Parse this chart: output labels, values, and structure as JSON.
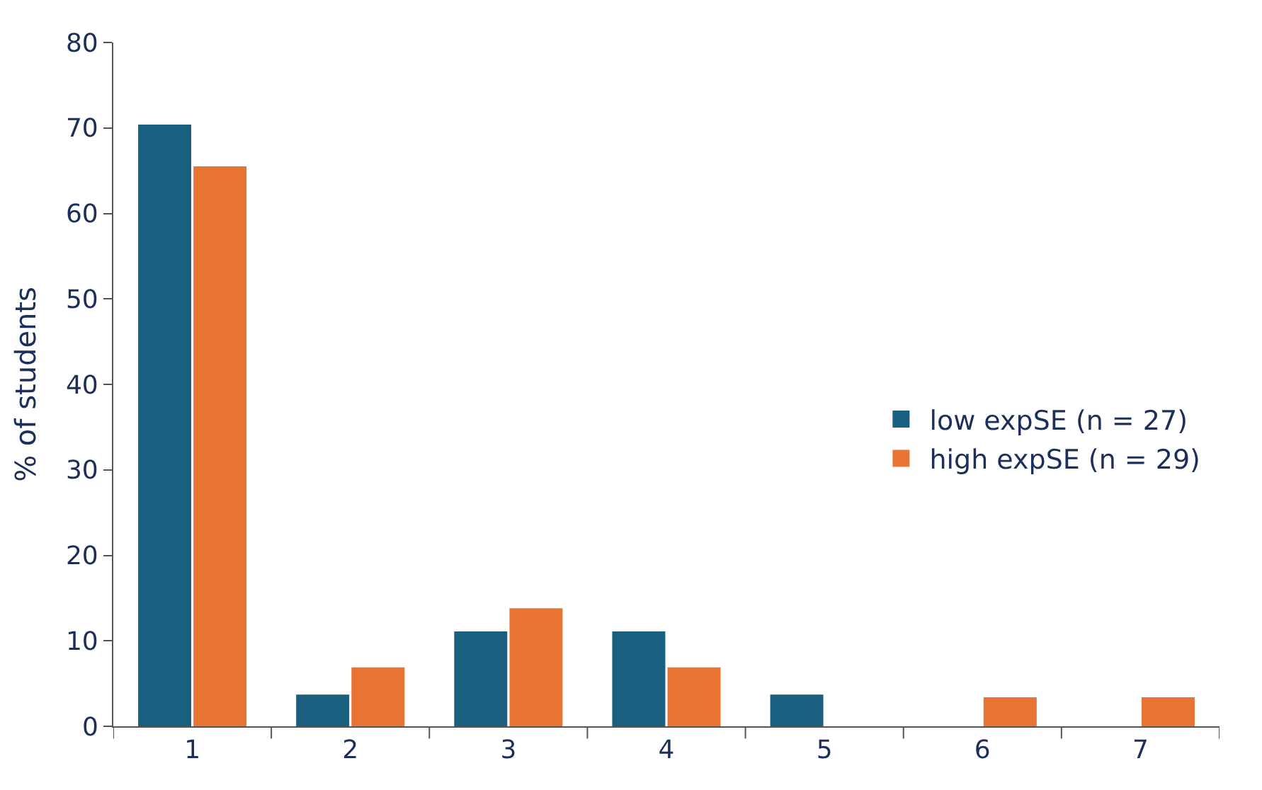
{
  "chart_data": {
    "type": "bar",
    "ylabel": "% of students",
    "categories": [
      "1",
      "2",
      "3",
      "4",
      "5",
      "6",
      "7"
    ],
    "series": [
      {
        "name": "low expSE (n = 27)",
        "color": "#1a5f80",
        "values": [
          70.4,
          3.7,
          11.1,
          11.1,
          3.7,
          0,
          0
        ]
      },
      {
        "name": "high expSE (n = 29)",
        "color": "#e87433",
        "values": [
          65.5,
          6.9,
          13.8,
          6.9,
          0,
          3.4,
          3.4
        ]
      }
    ],
    "ylim": [
      0,
      80
    ],
    "yticks": [
      0,
      10,
      20,
      30,
      40,
      50,
      60,
      70,
      80
    ],
    "legend": "right"
  }
}
